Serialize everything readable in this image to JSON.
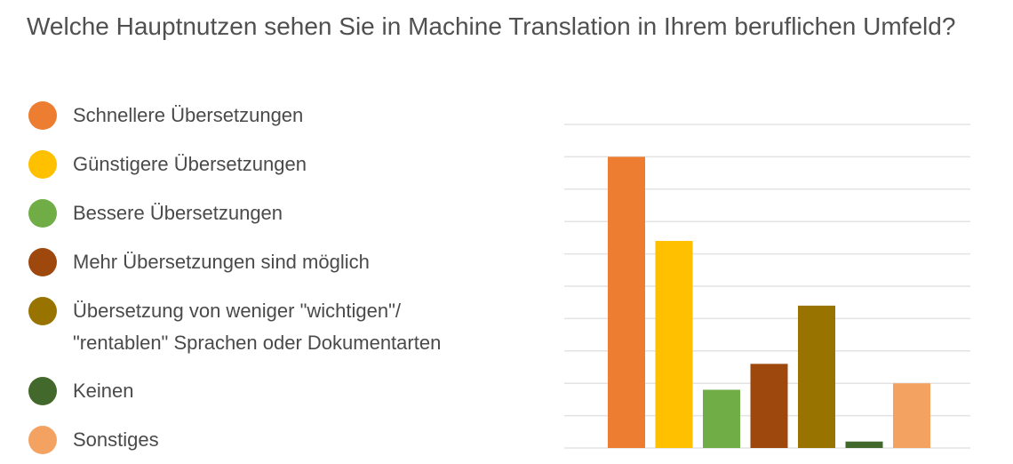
{
  "question": "Welche Hauptnutzen sehen Sie in Machine Translation in Ihrem beruflichen Umfeld?",
  "colors": {
    "schneller": "#ed7d31",
    "guenstiger": "#ffc000",
    "besser": "#70ad47",
    "mehr": "#9e480e",
    "weniger_wichtig": "#997300",
    "keinen": "#43682b",
    "sonstiges": "#f4a261",
    "grid": "#e3e3e3"
  },
  "legend": [
    {
      "label": "Schnellere Übersetzungen"
    },
    {
      "label": "Günstigere Übersetzungen"
    },
    {
      "label": "Bessere Übersetzungen"
    },
    {
      "label": "Mehr Übersetzungen sind möglich"
    },
    {
      "label": "Übersetzung von weniger \"wichtigen\"/\n\"rentablen\" Sprachen oder Dokumentarten"
    },
    {
      "label": "Keinen"
    },
    {
      "label": "Sonstiges"
    }
  ],
  "chart_data": {
    "type": "bar",
    "categories": [
      "Schnellere Übersetzungen",
      "Günstigere Übersetzungen",
      "Bessere Übersetzungen",
      "Mehr Übersetzungen sind möglich",
      "Übersetzung von weniger \"wichtigen\"/\"rentablen\" Sprachen oder Dokumentarten",
      "Keinen",
      "Sonstiges"
    ],
    "values": [
      9,
      6.4,
      1.8,
      2.6,
      4.4,
      0.2,
      2
    ],
    "colors": [
      "#ed7d31",
      "#ffc000",
      "#70ad47",
      "#9e480e",
      "#997300",
      "#43682b",
      "#f4a261"
    ],
    "ylim": [
      0,
      10
    ],
    "grid": true,
    "legend_position": "left",
    "title": "",
    "xlabel": "",
    "ylabel": ""
  }
}
